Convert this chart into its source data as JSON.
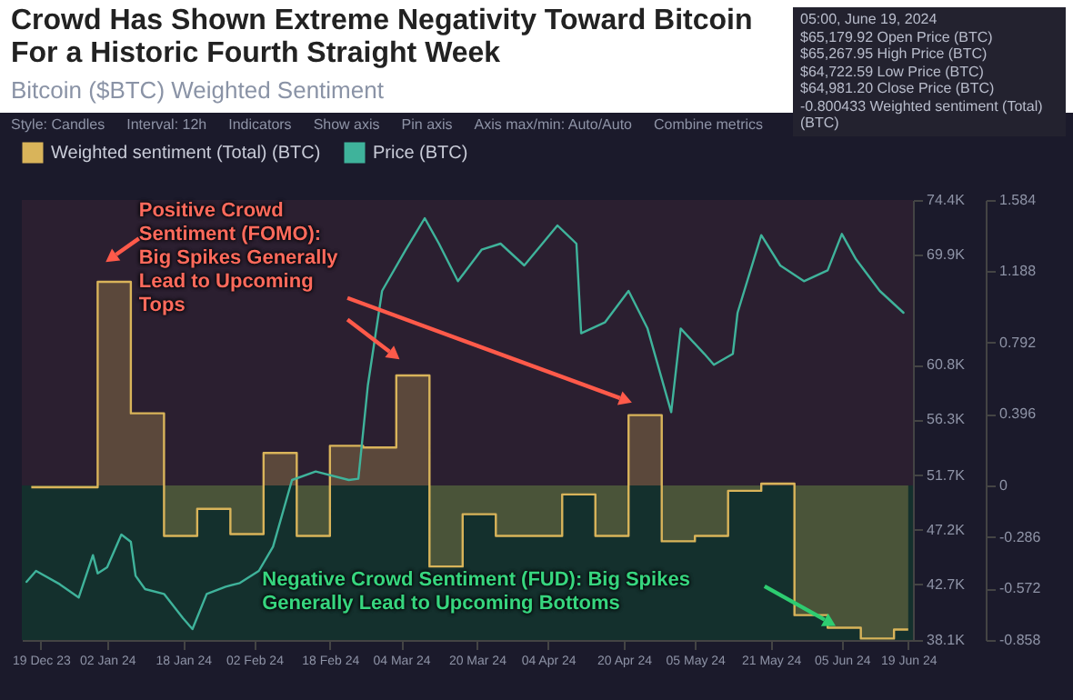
{
  "chart_data": {
    "type": "line",
    "title": "Crowd Has Shown Extreme Negativity Toward Bitcoin For a Historic Fourth Straight Week",
    "subtitle": "Bitcoin ($BTC) Weighted Sentiment",
    "series": [
      {
        "name": "Weighted sentiment (Total) (BTC)",
        "type": "step",
        "axis": "y2",
        "color": "#d9b45a",
        "x": [
          "2023-12-17",
          "2023-12-24",
          "2023-12-31",
          "2024-01-07",
          "2024-01-14",
          "2024-01-21",
          "2024-01-28",
          "2024-02-04",
          "2024-02-11",
          "2024-02-18",
          "2024-02-25",
          "2024-03-03",
          "2024-03-10",
          "2024-03-17",
          "2024-03-24",
          "2024-03-31",
          "2024-04-07",
          "2024-04-14",
          "2024-04-21",
          "2024-04-28",
          "2024-05-05",
          "2024-05-12",
          "2024-05-19",
          "2024-05-26",
          "2024-06-02",
          "2024-06-09",
          "2024-06-16",
          "2024-06-19"
        ],
        "values": [
          -0.01,
          -0.01,
          1.13,
          0.4,
          -0.28,
          -0.13,
          -0.27,
          0.18,
          -0.28,
          0.22,
          0.21,
          0.61,
          -0.45,
          -0.16,
          -0.28,
          -0.28,
          -0.05,
          -0.28,
          0.39,
          -0.31,
          -0.28,
          -0.03,
          0.01,
          -0.72,
          -0.79,
          -0.85,
          -0.8,
          -0.8
        ]
      },
      {
        "name": "Price (BTC)",
        "type": "line",
        "color": "#3fb39b",
        "x": [
          "2023-12-16",
          "2023-12-18",
          "2023-12-23",
          "2023-12-27",
          "2023-12-30",
          "2023-12-31",
          "2024-01-02",
          "2024-01-05",
          "2024-01-07",
          "2024-01-08",
          "2024-01-10",
          "2024-01-14",
          "2024-01-18",
          "2024-01-20",
          "2024-01-23",
          "2024-01-27",
          "2024-01-30",
          "2024-02-03",
          "2024-02-06",
          "2024-02-10",
          "2024-02-15",
          "2024-02-22",
          "2024-02-24",
          "2024-02-26",
          "2024-02-29",
          "2024-03-05",
          "2024-03-09",
          "2024-03-12",
          "2024-03-16",
          "2024-03-21",
          "2024-03-25",
          "2024-03-30",
          "2024-04-06",
          "2024-04-10",
          "2024-04-11",
          "2024-04-16",
          "2024-04-21",
          "2024-04-25",
          "2024-04-30",
          "2024-05-02",
          "2024-05-07",
          "2024-05-09",
          "2024-05-13",
          "2024-05-14",
          "2024-05-19",
          "2024-05-23",
          "2024-05-28",
          "2024-06-02",
          "2024-06-05",
          "2024-06-08",
          "2024-06-13",
          "2024-06-18"
        ],
        "values": [
          42900,
          43800,
          42700,
          41600,
          45100,
          43600,
          44100,
          46800,
          46200,
          43400,
          42300,
          41900,
          39900,
          39000,
          41900,
          42500,
          42800,
          43800,
          45800,
          51300,
          52000,
          51300,
          51400,
          59100,
          66900,
          70300,
          72900,
          70800,
          67700,
          70300,
          70800,
          69000,
          72300,
          70800,
          63400,
          64300,
          66900,
          63800,
          56900,
          63800,
          61700,
          60800,
          61700,
          65100,
          71500,
          69000,
          67700,
          68600,
          71600,
          69500,
          66900,
          65100
        ]
      }
    ],
    "xlim": [
      "2023-12-15",
      "2024-06-20"
    ],
    "xticks": [
      {
        "value": "2023-12-19",
        "label": "19 Dec 23"
      },
      {
        "value": "2024-01-02",
        "label": "02 Jan 24"
      },
      {
        "value": "2024-01-18",
        "label": "18 Jan 24"
      },
      {
        "value": "2024-02-02",
        "label": "02 Feb 24"
      },
      {
        "value": "2024-02-18",
        "label": "18 Feb 24"
      },
      {
        "value": "2024-03-04",
        "label": "04 Mar 24"
      },
      {
        "value": "2024-03-20",
        "label": "20 Mar 24"
      },
      {
        "value": "2024-04-04",
        "label": "04 Apr 24"
      },
      {
        "value": "2024-04-20",
        "label": "20 Apr 24"
      },
      {
        "value": "2024-05-05",
        "label": "05 May 24"
      },
      {
        "value": "2024-05-21",
        "label": "21 May 24"
      },
      {
        "value": "2024-06-05",
        "label": "05 Jun 24"
      },
      {
        "value": "2024-06-19",
        "label": "19 Jun 24"
      }
    ],
    "ylim": [
      38100,
      74400
    ],
    "yticks": [
      {
        "value": 38100,
        "label": "38.1K"
      },
      {
        "value": 42700,
        "label": "42.7K"
      },
      {
        "value": 47200,
        "label": "47.2K"
      },
      {
        "value": 51700,
        "label": "51.7K"
      },
      {
        "value": 56300,
        "label": "56.3K"
      },
      {
        "value": 60800,
        "label": "60.8K"
      },
      {
        "value": 69900,
        "label": "69.9K"
      },
      {
        "value": 74400,
        "label": "74.4K"
      }
    ],
    "y2lim": [
      -0.858,
      1.584
    ],
    "y2ticks": [
      -0.858,
      -0.572,
      -0.286,
      0,
      0.396,
      0.792,
      1.188,
      1.584
    ],
    "bands": [
      {
        "axis": "y2",
        "from": 0,
        "to": 1.584,
        "color": "#2b1f30"
      },
      {
        "axis": "y2",
        "from": -0.858,
        "to": 0,
        "color": "#14302d"
      }
    ],
    "legend": "top",
    "annotations": [
      "Positive Crowd Sentiment (FOMO): Big Spikes Generally Lead to Upcoming Tops",
      "Negative Crowd Sentiment (FUD): Big Spikes Generally Lead to Upcoming Bottoms",
      "05:00, June 19, 2024",
      "$65,179.92 Open Price (BTC)",
      "$65,267.95 High Price (BTC)",
      "$64,722.59 Low Price (BTC)",
      "$64,981.20 Close Price (BTC)",
      "-0.800433 Weighted sentiment (Total) (BTC)",
      "Style: Candles",
      "Interval: 12h",
      "Indicators",
      "Show axis",
      "Pin axis",
      "Axis max/min: Auto/Auto",
      "Combine metrics"
    ]
  }
}
